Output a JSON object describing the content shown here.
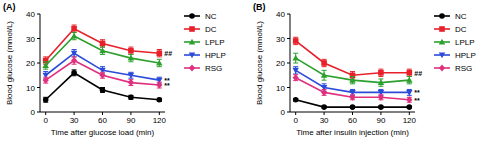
{
  "chart_data": [
    {
      "type": "line",
      "title": "(A)",
      "x_label": "Time after glucose load (min)",
      "y_label": "Blood glucose (mmol/L)",
      "x": [
        0,
        30,
        60,
        90,
        120
      ],
      "xlim": [
        -6,
        126
      ],
      "xticks": [
        0,
        30,
        60,
        90,
        120
      ],
      "ylim": [
        0,
        40
      ],
      "yticks": [
        0,
        10,
        20,
        30,
        40
      ],
      "legend": "right",
      "series": [
        {
          "name": "NC",
          "color": "#000000",
          "marker": "circle",
          "values": [
            5,
            16,
            9,
            6,
            5
          ],
          "errors": [
            1,
            1.2,
            1,
            0.8,
            0.6
          ]
        },
        {
          "name": "DC",
          "color": "#e8202a",
          "marker": "square",
          "values": [
            21,
            34,
            28,
            25,
            24
          ],
          "errors": [
            1.5,
            1.5,
            1.5,
            1.5,
            1.5
          ],
          "annotation": "##"
        },
        {
          "name": "LPLP",
          "color": "#2ca02c",
          "marker": "triangle",
          "values": [
            19,
            31,
            25,
            22,
            20
          ],
          "errors": [
            1.5,
            1.5,
            1.5,
            1.5,
            1.5
          ]
        },
        {
          "name": "HPLP",
          "color": "#2b4bd8",
          "marker": "triangle-down",
          "values": [
            15,
            24,
            17,
            15,
            13
          ],
          "errors": [
            1.5,
            1.5,
            1.5,
            1.2,
            1.2
          ],
          "annotation": "**"
        },
        {
          "name": "RSG",
          "color": "#e0307d",
          "marker": "diamond",
          "values": [
            13,
            21,
            15,
            12,
            11
          ],
          "errors": [
            1.2,
            1.5,
            1.2,
            1.2,
            1.2
          ],
          "annotation": "**"
        }
      ]
    },
    {
      "type": "line",
      "title": "(B)",
      "x_label": "Time after insulin injection (min)",
      "y_label": "Blood glucose (mmol/L)",
      "x": [
        0,
        30,
        60,
        90,
        120
      ],
      "xlim": [
        -6,
        126
      ],
      "xticks": [
        0,
        30,
        60,
        90,
        120
      ],
      "ylim": [
        0,
        40
      ],
      "yticks": [
        0,
        10,
        20,
        30,
        40
      ],
      "legend": "right",
      "series": [
        {
          "name": "NC",
          "color": "#000000",
          "marker": "circle",
          "values": [
            5,
            2,
            2,
            2,
            2
          ],
          "errors": [
            0.5,
            0.4,
            0.4,
            0.4,
            0.4
          ]
        },
        {
          "name": "DC",
          "color": "#e8202a",
          "marker": "square",
          "values": [
            29,
            20,
            15,
            16,
            16
          ],
          "errors": [
            1.5,
            1.5,
            1.5,
            1.5,
            1.5
          ],
          "annotation": "##"
        },
        {
          "name": "LPLP",
          "color": "#2ca02c",
          "marker": "triangle",
          "values": [
            22,
            15,
            13,
            12,
            13
          ],
          "errors": [
            2,
            2,
            1.5,
            1.5,
            1.5
          ]
        },
        {
          "name": "HPLP",
          "color": "#2b4bd8",
          "marker": "triangle-down",
          "values": [
            17,
            10,
            8,
            8,
            8
          ],
          "errors": [
            1.5,
            1.5,
            1.2,
            1.2,
            1.2
          ],
          "annotation": "**"
        },
        {
          "name": "RSG",
          "color": "#e0307d",
          "marker": "diamond",
          "values": [
            14,
            8,
            6,
            6,
            5
          ],
          "errors": [
            1.2,
            1.2,
            1,
            1,
            1
          ],
          "annotation": "**"
        }
      ]
    }
  ]
}
